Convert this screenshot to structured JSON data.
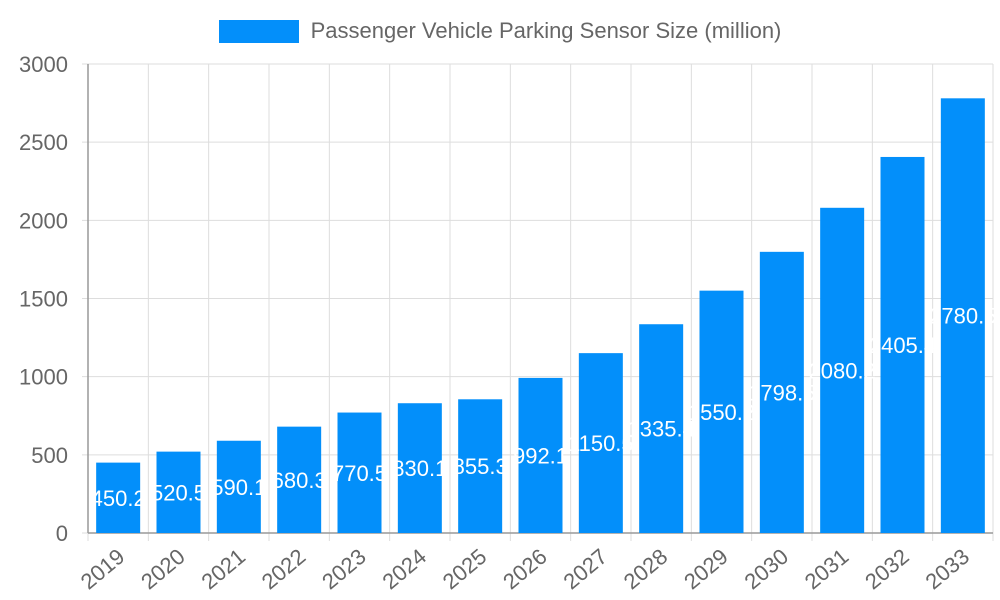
{
  "chart_data": {
    "type": "bar",
    "title": "",
    "xlabel": "",
    "ylabel": "",
    "ylim": [
      0,
      3000
    ],
    "yticks": [
      0,
      500,
      1000,
      1500,
      2000,
      2500,
      3000
    ],
    "grid": true,
    "legend_position": "top",
    "color": "#038ffa",
    "categories": [
      "2019",
      "2020",
      "2021",
      "2022",
      "2023",
      "2024",
      "2025",
      "2026",
      "2027",
      "2028",
      "2029",
      "2030",
      "2031",
      "2032",
      "2033"
    ],
    "series": [
      {
        "name": "Passenger Vehicle Parking Sensor Size (million)",
        "values": [
          450.2,
          520.5,
          590.1,
          680.3,
          770.5,
          830.1,
          855.3,
          992.1,
          1150.5,
          1335.4,
          1550.2,
          1798.5,
          2080.2,
          2405.4,
          2780.5
        ]
      }
    ]
  }
}
